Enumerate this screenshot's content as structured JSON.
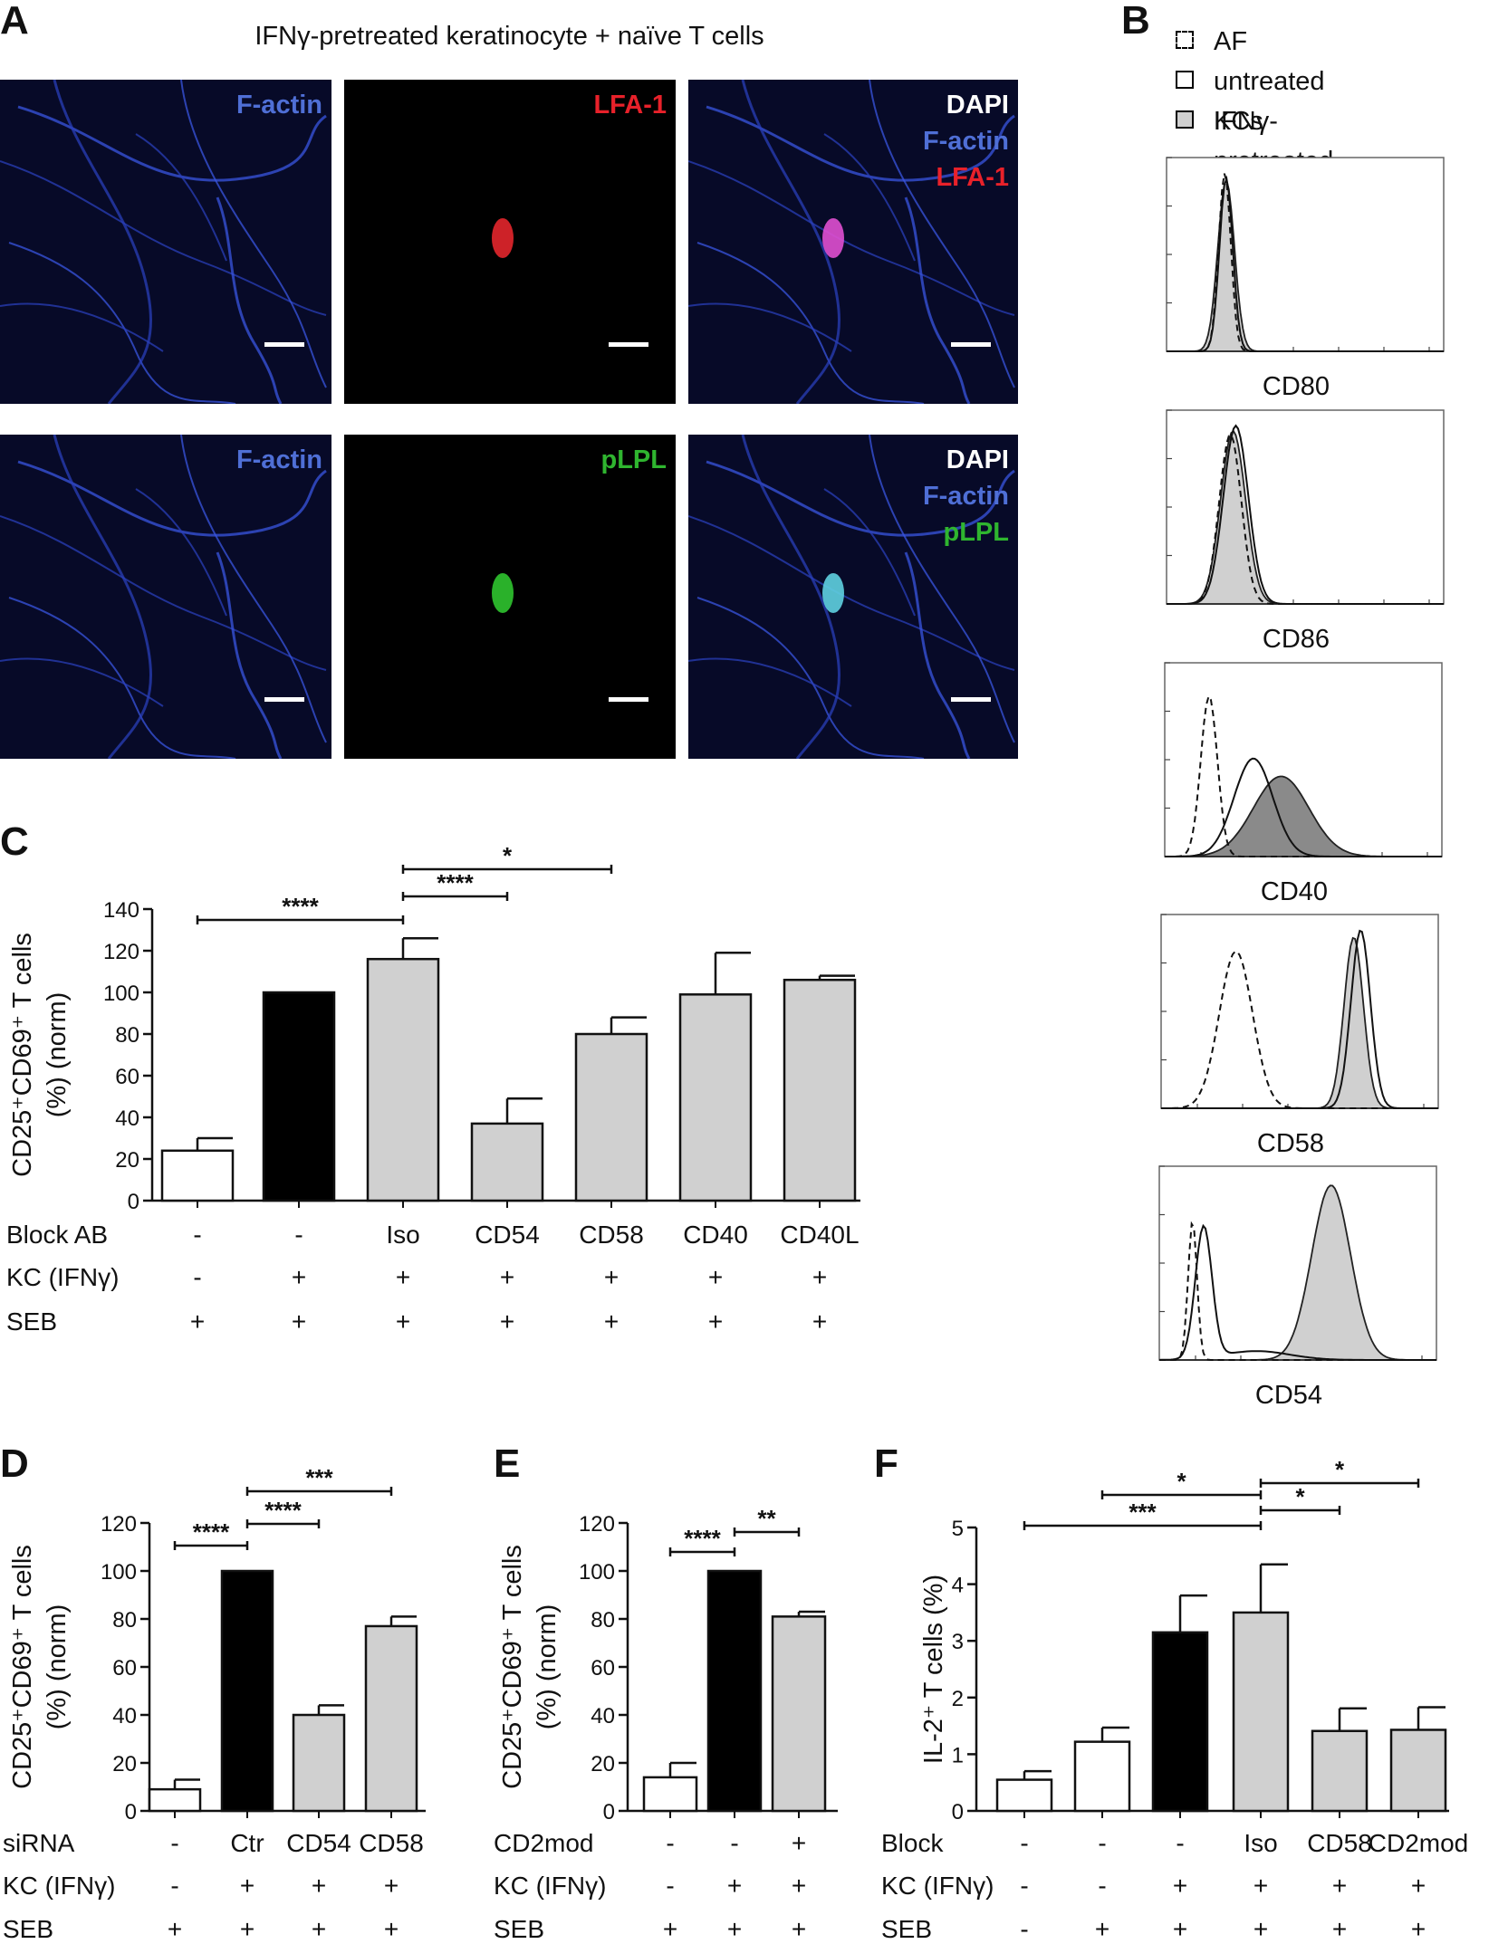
{
  "panel_letters": {
    "A": "A",
    "B": "B",
    "C": "C",
    "D": "D",
    "E": "E",
    "F": "F"
  },
  "panel_a": {
    "title": "IFNγ-pretreated keratinocyte + naïve T cells",
    "row1": [
      {
        "labels": [
          {
            "text": "F-actin",
            "color": "#4f6fd6"
          }
        ]
      },
      {
        "labels": [
          {
            "text": "LFA-1",
            "color": "#e8212a"
          }
        ]
      },
      {
        "labels": [
          {
            "text": "DAPI",
            "color": "#ffffff"
          },
          {
            "text": "F-actin",
            "color": "#4f6fd6"
          },
          {
            "text": "LFA-1",
            "color": "#e8212a"
          }
        ]
      }
    ],
    "row2": [
      {
        "labels": [
          {
            "text": "F-actin",
            "color": "#4f6fd6"
          }
        ]
      },
      {
        "labels": [
          {
            "text": "pLPL",
            "color": "#2fb52f"
          }
        ]
      },
      {
        "labels": [
          {
            "text": "DAPI",
            "color": "#ffffff"
          },
          {
            "text": "F-actin",
            "color": "#4f6fd6"
          },
          {
            "text": "pLPL",
            "color": "#2fb52f"
          }
        ]
      }
    ]
  },
  "panel_b": {
    "legend": [
      "AF",
      "untreated KCs",
      "IFNγ-pretreated KCs"
    ],
    "histograms": [
      {
        "marker": "CD80"
      },
      {
        "marker": "CD86"
      },
      {
        "marker": "CD40"
      },
      {
        "marker": "CD58"
      },
      {
        "marker": "CD54"
      }
    ]
  },
  "colors": {
    "white_bar": "#ffffff",
    "black_bar": "#000000",
    "gray_bar": "#d0d0d0",
    "filled_hist": "#d0d0d0",
    "dark_hist": "#8a8a8a"
  },
  "chart_data": [
    {
      "id": "C",
      "type": "bar",
      "ylabel": "CD25⁺CD69⁺ T cells (%) (norm)",
      "ylim": [
        0,
        140
      ],
      "yticks": [
        0,
        20,
        40,
        60,
        80,
        100,
        120,
        140
      ],
      "values": [
        24,
        100,
        116,
        37,
        80,
        99,
        106
      ],
      "errors": [
        6,
        0,
        10,
        12,
        8,
        20,
        2
      ],
      "fills": [
        "white",
        "black",
        "gray",
        "gray",
        "gray",
        "gray",
        "gray"
      ],
      "rows": [
        {
          "label": "Block AB",
          "values": [
            "-",
            "-",
            "Iso",
            "CD54",
            "CD58",
            "CD40",
            "CD40L"
          ]
        },
        {
          "label": "KC (IFNγ)",
          "values": [
            "-",
            "+",
            "+",
            "+",
            "+",
            "+",
            "+"
          ]
        },
        {
          "label": "SEB",
          "values": [
            "+",
            "+",
            "+",
            "+",
            "+",
            "+",
            "+"
          ]
        }
      ],
      "significance": [
        {
          "from": 0,
          "to": 2,
          "label": "****"
        },
        {
          "from": 2,
          "to": 3,
          "label": "****"
        },
        {
          "from": 2,
          "to": 4,
          "label": "*"
        }
      ]
    },
    {
      "id": "D",
      "type": "bar",
      "ylabel": "CD25⁺CD69⁺ T cells (%) (norm)",
      "ylim": [
        0,
        120
      ],
      "yticks": [
        0,
        20,
        40,
        60,
        80,
        100,
        120
      ],
      "values": [
        9,
        100,
        40,
        77
      ],
      "errors": [
        4,
        0,
        4,
        4
      ],
      "fills": [
        "white",
        "black",
        "gray",
        "gray"
      ],
      "rows": [
        {
          "label": "siRNA",
          "values": [
            "-",
            "Ctr",
            "CD54",
            "CD58"
          ]
        },
        {
          "label": "KC (IFNγ)",
          "values": [
            "-",
            "+",
            "+",
            "+"
          ]
        },
        {
          "label": "SEB",
          "values": [
            "+",
            "+",
            "+",
            "+"
          ]
        }
      ],
      "significance": [
        {
          "from": 0,
          "to": 1,
          "label": "****"
        },
        {
          "from": 1,
          "to": 2,
          "label": "****"
        },
        {
          "from": 1,
          "to": 3,
          "label": "***"
        }
      ]
    },
    {
      "id": "E",
      "type": "bar",
      "ylabel": "CD25⁺CD69⁺ T cells (%) (norm)",
      "ylim": [
        0,
        120
      ],
      "yticks": [
        0,
        20,
        40,
        60,
        80,
        100,
        120
      ],
      "values": [
        14,
        100,
        81
      ],
      "errors": [
        6,
        0,
        2
      ],
      "fills": [
        "white",
        "black",
        "gray"
      ],
      "rows": [
        {
          "label": "CD2mod",
          "values": [
            "-",
            "-",
            "+"
          ]
        },
        {
          "label": "KC (IFNγ)",
          "values": [
            "-",
            "+",
            "+"
          ]
        },
        {
          "label": "SEB",
          "values": [
            "+",
            "+",
            "+"
          ]
        }
      ],
      "significance": [
        {
          "from": 0,
          "to": 1,
          "label": "****"
        },
        {
          "from": 1,
          "to": 2,
          "label": "**"
        }
      ]
    },
    {
      "id": "F",
      "type": "bar",
      "ylabel": "IL-2⁺ T cells (%)",
      "ylim": [
        0,
        5
      ],
      "yticks": [
        0,
        1,
        2,
        3,
        4,
        5
      ],
      "values": [
        0.55,
        1.22,
        3.15,
        3.5,
        1.41,
        1.43
      ],
      "errors": [
        0.15,
        0.25,
        0.65,
        0.85,
        0.4,
        0.4
      ],
      "fills": [
        "white",
        "white",
        "black",
        "gray",
        "gray",
        "gray"
      ],
      "rows": [
        {
          "label": "Block",
          "values": [
            "-",
            "-",
            "-",
            "Iso",
            "CD58",
            "CD2mod"
          ]
        },
        {
          "label": "KC (IFNγ)",
          "values": [
            "-",
            "-",
            "+",
            "+",
            "+",
            "+"
          ]
        },
        {
          "label": "SEB",
          "values": [
            "-",
            "+",
            "+",
            "+",
            "+",
            "+"
          ]
        }
      ],
      "significance": [
        {
          "from": 0,
          "to": 3,
          "label": "***"
        },
        {
          "from": 1,
          "to": 3,
          "label": "*"
        },
        {
          "from": 3,
          "to": 4,
          "label": "*"
        },
        {
          "from": 3,
          "to": 5,
          "label": "*"
        }
      ]
    }
  ]
}
